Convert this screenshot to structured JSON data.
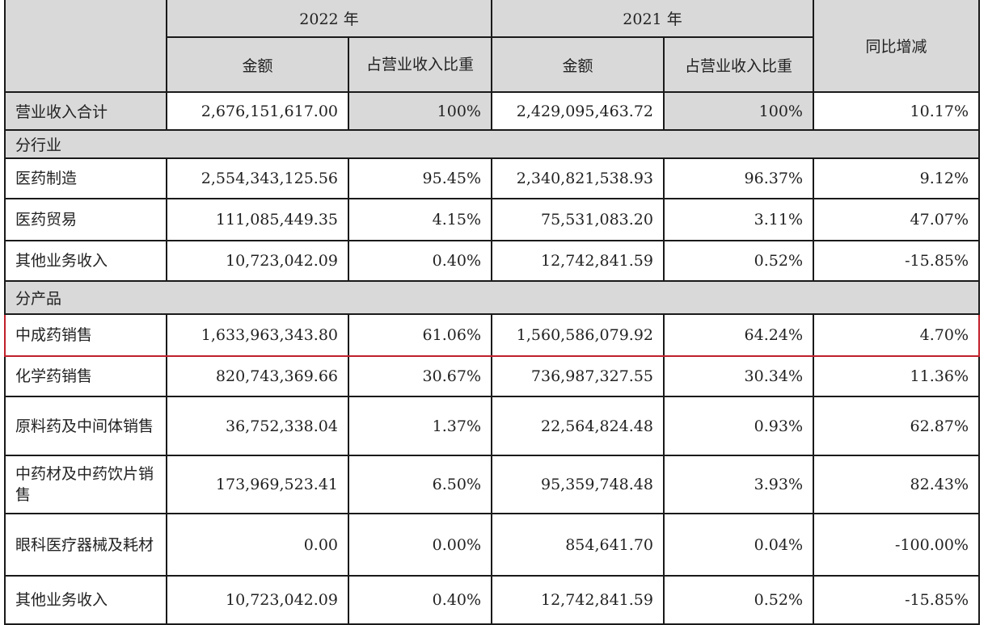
{
  "header": {
    "year_2022": "2022 年",
    "year_2021": "2021 年",
    "amount": "金额",
    "share_2022": "占营业收入比重",
    "share_2021": "占营业收入比重",
    "yoy": "同比增减"
  },
  "total": {
    "label": "营业收入合计",
    "amt2022": "2,676,151,617.00",
    "pct2022": "100%",
    "amt2021": "2,429,095,463.72",
    "pct2021": "100%",
    "yoy": "10.17%"
  },
  "section_industry": "分行业",
  "industry_rows": [
    {
      "label": "医药制造",
      "amt2022": "2,554,343,125.56",
      "pct2022": "95.45%",
      "amt2021": "2,340,821,538.93",
      "pct2021": "96.37%",
      "yoy": "9.12%"
    },
    {
      "label": "医药贸易",
      "amt2022": "111,085,449.35",
      "pct2022": "4.15%",
      "amt2021": "75,531,083.20",
      "pct2021": "3.11%",
      "yoy": "47.07%"
    },
    {
      "label": "其他业务收入",
      "amt2022": "10,723,042.09",
      "pct2022": "0.40%",
      "amt2021": "12,742,841.59",
      "pct2021": "0.52%",
      "yoy": "-15.85%"
    }
  ],
  "section_product": "分产品",
  "product_rows": [
    {
      "label": "中成药销售",
      "amt2022": "1,633,963,343.80",
      "pct2022": "61.06%",
      "amt2021": "1,560,586,079.92",
      "pct2021": "64.24%",
      "yoy": "4.70%",
      "highlighted": true
    },
    {
      "label": "化学药销售",
      "amt2022": "820,743,369.66",
      "pct2022": "30.67%",
      "amt2021": "736,987,327.55",
      "pct2021": "30.34%",
      "yoy": "11.36%"
    },
    {
      "label": "原料药及中间体销售",
      "amt2022": "36,752,338.04",
      "pct2022": "1.37%",
      "amt2021": "22,564,824.48",
      "pct2021": "0.93%",
      "yoy": "62.87%"
    },
    {
      "label": "中药材及中药饮片销售",
      "amt2022": "173,969,523.41",
      "pct2022": "6.50%",
      "amt2021": "95,359,748.48",
      "pct2021": "3.93%",
      "yoy": "82.43%"
    },
    {
      "label": "眼科医疗器械及耗材",
      "amt2022": "0.00",
      "pct2022": "0.00%",
      "amt2021": "854,641.70",
      "pct2021": "0.04%",
      "yoy": "-100.00%"
    },
    {
      "label": "其他业务收入",
      "amt2022": "10,723,042.09",
      "pct2022": "0.40%",
      "amt2021": "12,742,841.59",
      "pct2021": "0.52%",
      "yoy": "-15.85%"
    }
  ],
  "colors": {
    "header_bg": "#d9d9d9",
    "highlight_border": "#c0202a"
  }
}
